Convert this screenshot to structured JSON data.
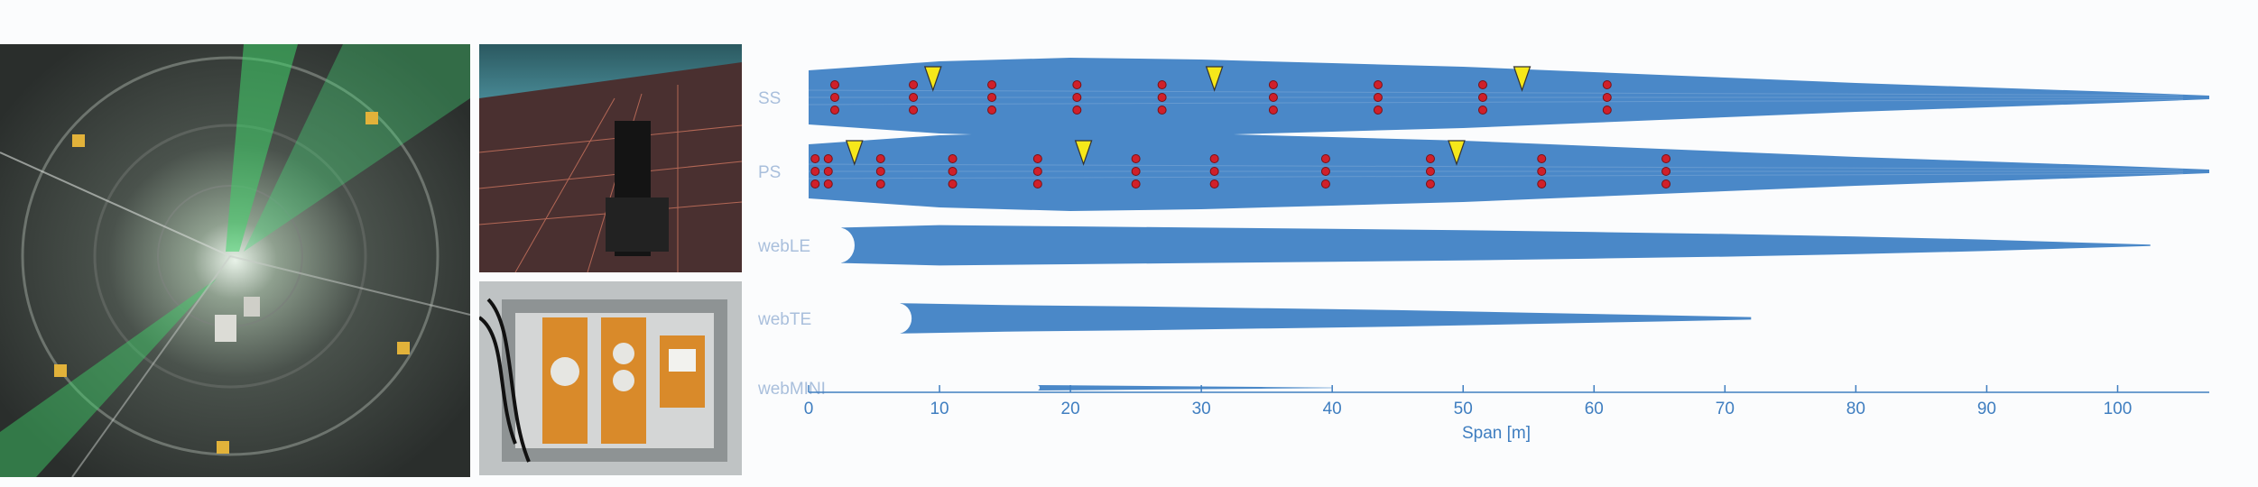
{
  "photos": [
    {
      "name": "blade-interior-tunnel-photo"
    },
    {
      "name": "blade-shell-sensor-photo"
    },
    {
      "name": "junction-box-photo"
    }
  ],
  "chart_data": {
    "type": "area",
    "xlabel": "Span [m]",
    "xlim": [
      0,
      107
    ],
    "xticks": [
      0,
      10,
      20,
      30,
      40,
      50,
      60,
      70,
      80,
      90,
      100
    ],
    "series": [
      {
        "name": "SS",
        "x": [
          0,
          10,
          20,
          30,
          40,
          50,
          60,
          70,
          80,
          90,
          100,
          107
        ],
        "width": [
          1.5,
          2.0,
          2.2,
          2.1,
          1.9,
          1.7,
          1.4,
          1.1,
          0.8,
          0.55,
          0.3,
          0.1
        ]
      },
      {
        "name": "PS",
        "x": [
          0,
          10,
          20,
          30,
          40,
          50,
          60,
          70,
          80,
          90,
          100,
          107
        ],
        "width": [
          1.5,
          2.0,
          2.2,
          2.1,
          1.9,
          1.7,
          1.4,
          1.1,
          0.8,
          0.55,
          0.3,
          0.1
        ]
      },
      {
        "name": "webLE",
        "x": [
          2.5,
          10,
          20,
          30,
          40,
          50,
          60,
          70,
          80,
          90,
          102.5
        ],
        "width": [
          1.4,
          1.6,
          1.5,
          1.4,
          1.3,
          1.2,
          1.05,
          0.9,
          0.7,
          0.45,
          0.05
        ]
      },
      {
        "name": "webTE",
        "x": [
          7,
          15,
          25,
          35,
          45,
          55,
          65,
          72
        ],
        "width": [
          1.2,
          1.05,
          0.95,
          0.8,
          0.65,
          0.45,
          0.25,
          0.1
        ]
      },
      {
        "name": "webMINI",
        "x": [
          17.5,
          20,
          25,
          30,
          35,
          40
        ],
        "width": [
          0.5,
          0.45,
          0.35,
          0.25,
          0.15,
          0.05
        ]
      }
    ],
    "sensors": [
      {
        "surface": "SS",
        "x": [
          2,
          8,
          14,
          20.5,
          27,
          35.5,
          43.5,
          51.5,
          61
        ]
      },
      {
        "surface": "PS",
        "x": [
          0.5,
          1.5,
          5.5,
          11,
          17.5,
          25,
          31,
          39.5,
          47.5,
          56,
          65.5
        ]
      }
    ],
    "markers": [
      {
        "surface": "SS",
        "x": [
          9.5,
          31,
          54.5
        ]
      },
      {
        "surface": "PS",
        "x": [
          3.5,
          21,
          49.5
        ]
      }
    ],
    "colors": {
      "blade": "#4a88c8",
      "axis": "#3f7ec0",
      "label": "#a9bfdc",
      "sensor": "#d0202a",
      "marker": "#f6e81a"
    }
  }
}
